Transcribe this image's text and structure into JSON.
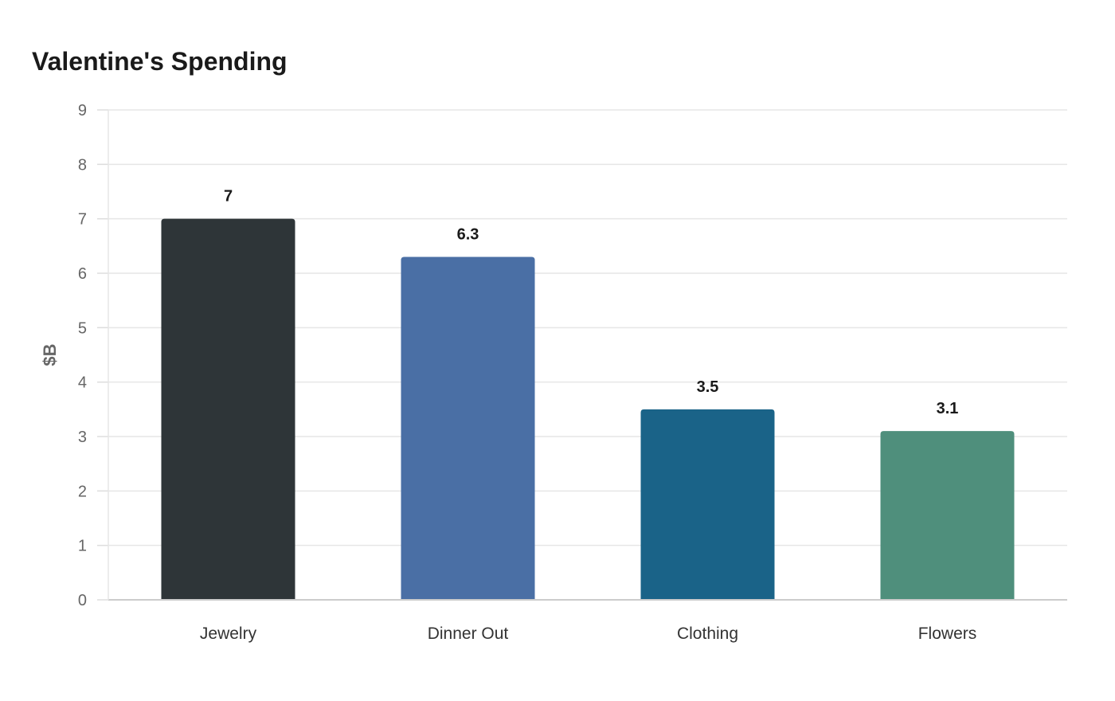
{
  "chart_data": {
    "type": "bar",
    "title": "Valentine's Spending",
    "xlabel": "",
    "ylabel": "$B",
    "categories": [
      "Jewelry",
      "Dinner Out",
      "Clothing",
      "Flowers"
    ],
    "values": [
      7,
      6.3,
      3.5,
      3.1
    ],
    "value_labels": [
      "7",
      "6.3",
      "3.5",
      "3.1"
    ],
    "ylim": [
      0,
      9
    ],
    "yticks": [
      0,
      1,
      2,
      3,
      4,
      5,
      6,
      7,
      8,
      9
    ],
    "grid": true,
    "legend": "none",
    "colors": [
      "#2e3538",
      "#4a6fa5",
      "#1a6388",
      "#4f8f7c"
    ]
  }
}
